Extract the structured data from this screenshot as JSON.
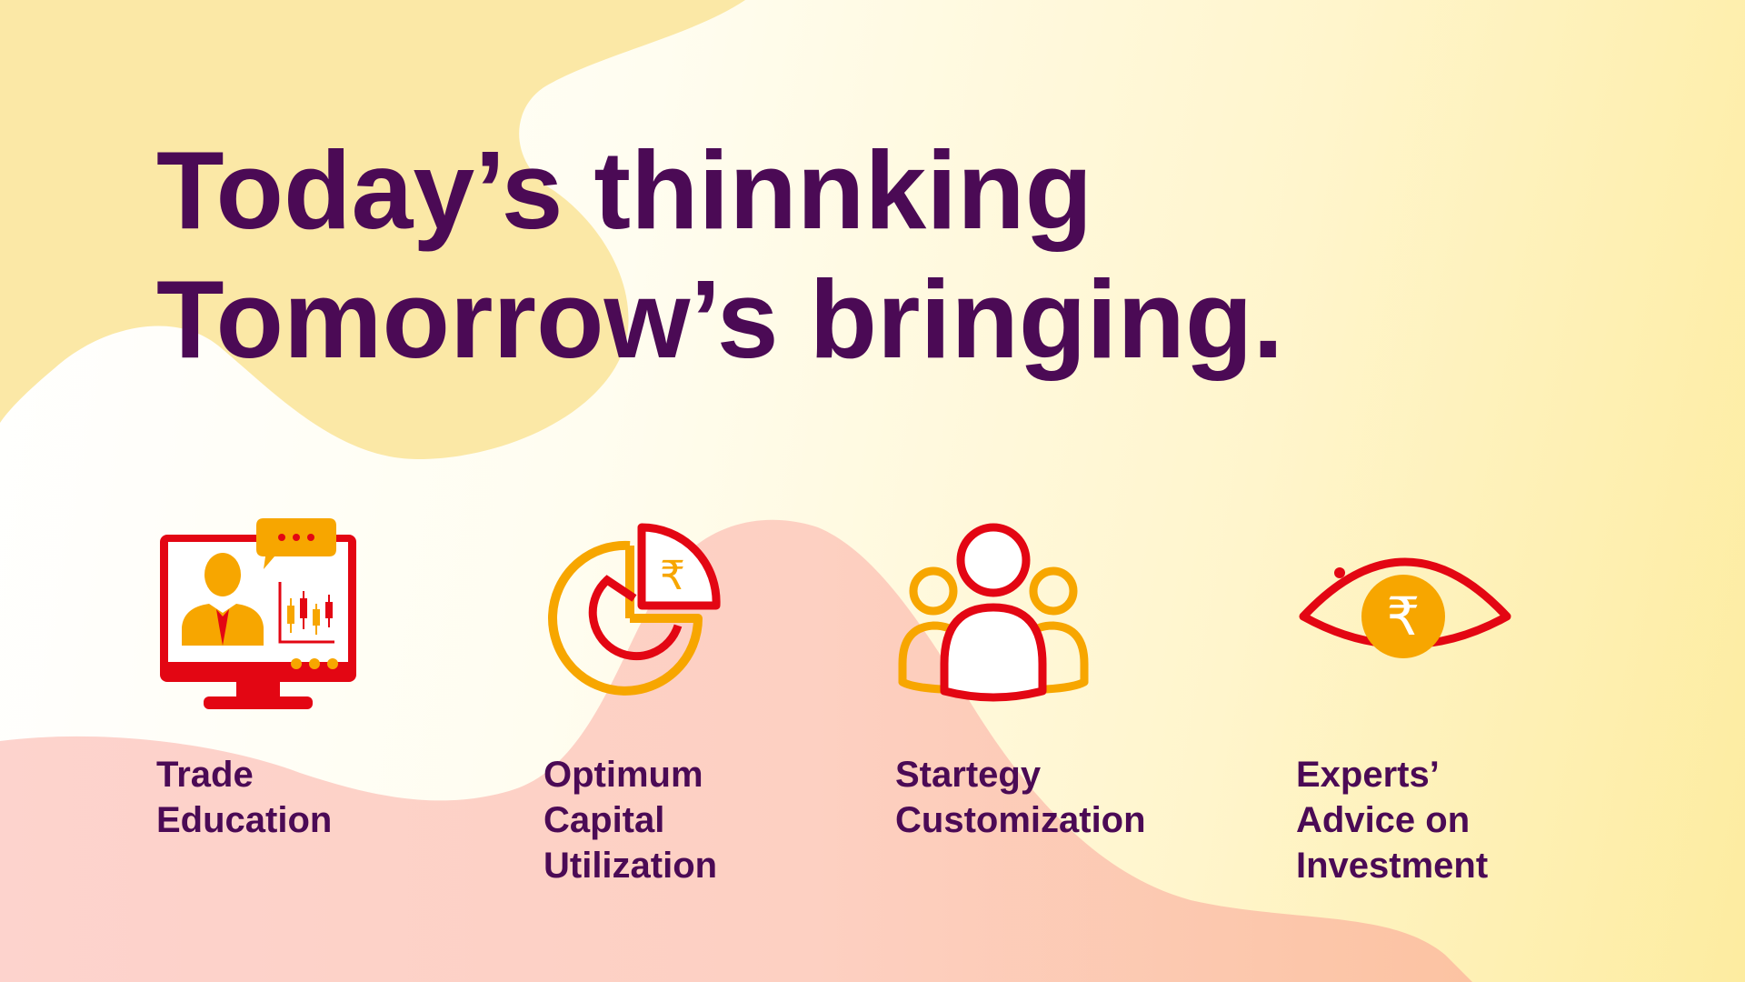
{
  "slide": {
    "headline": {
      "line1": "Today’s thinnking",
      "line2": "Tomorrow’s bringing."
    },
    "features": [
      {
        "icon": "online-trade-education-monitor-icon",
        "label_lines": [
          "Trade",
          "Education"
        ]
      },
      {
        "icon": "rupee-pie-chart-icon",
        "label_lines": [
          "Optimum",
          "Capital",
          "Utilization"
        ]
      },
      {
        "icon": "people-group-icon",
        "label_lines": [
          "Startegy",
          "Customization"
        ]
      },
      {
        "icon": "eye-rupee-icon",
        "label_lines": [
          "Experts’",
          "Advice on",
          "Investment"
        ]
      }
    ]
  },
  "colors": {
    "headline_text": "#4b0a55",
    "icon_red": "#e30613",
    "icon_orange": "#f7a600",
    "blob_yellow": "#fbe7a3",
    "blob_pink": "#fdd2c8"
  }
}
